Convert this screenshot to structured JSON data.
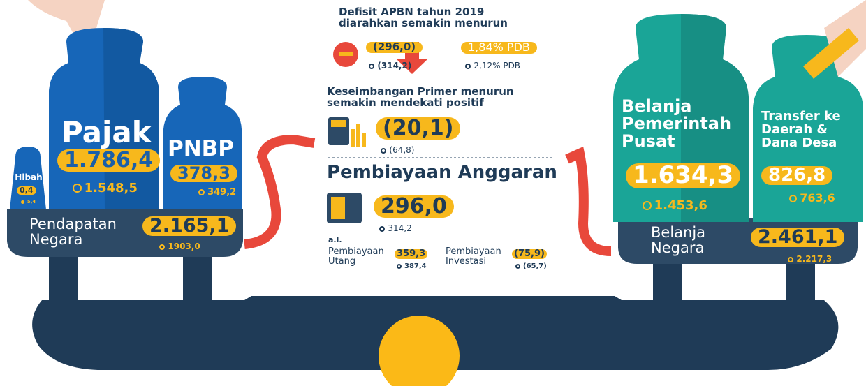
{
  "revenue": {
    "title": "Pendapatan Negara",
    "value": "2.165,1",
    "previous": "1903,0",
    "hibah": {
      "label": "Hibah",
      "value": "0,4",
      "previous": "5,4"
    },
    "pajak": {
      "label": "Pajak",
      "value": "1.786,4",
      "previous": "1.548,5"
    },
    "pnbp": {
      "label": "PNBP",
      "value": "378,3",
      "previous": "349,2"
    }
  },
  "deficit": {
    "title": "Defisit APBN tahun 2019 diarahkan semakin menurun",
    "value": "(296,0)",
    "previous": "(314,2)",
    "ratio": "1,84% PDB",
    "ratio_previous": "2,12% PDB"
  },
  "primary_balance": {
    "title": "Keseimbangan Primer menurun semakin mendekati positif",
    "value": "(20,1)",
    "previous": "(64,8)"
  },
  "financing": {
    "title": "Pembiayaan Anggaran",
    "value": "296,0",
    "previous": "314,2",
    "note": "a.l.",
    "items": [
      {
        "label": "Pembiayaan Utang",
        "value": "359,3",
        "previous": "387,4"
      },
      {
        "label": "Pembiayaan Investasi",
        "value": "(75,9)",
        "previous": "(65,7)"
      }
    ]
  },
  "spending": {
    "title": "Belanja Negara",
    "value": "2.461,1",
    "previous": "2.217,3",
    "central": {
      "label": "Belanja Pemerintah Pusat",
      "value": "1.634,3",
      "previous": "1.453,6"
    },
    "transfer": {
      "label": "Transfer ke Daerah & Dana Desa",
      "value": "826,8",
      "previous": "763,6"
    }
  }
}
